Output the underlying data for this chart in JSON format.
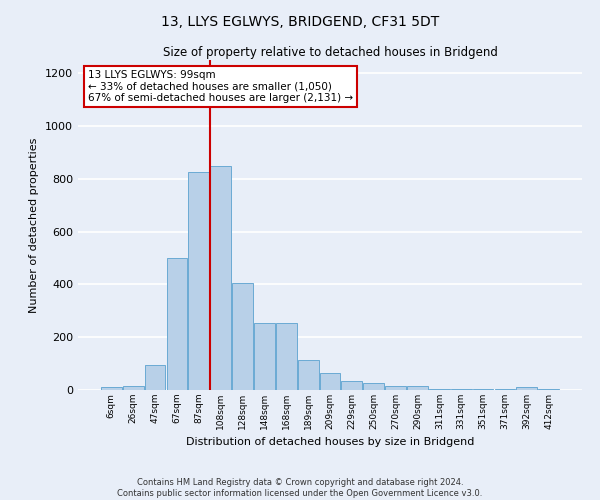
{
  "title": "13, LLYS EGLWYS, BRIDGEND, CF31 5DT",
  "subtitle": "Size of property relative to detached houses in Bridgend",
  "xlabel": "Distribution of detached houses by size in Bridgend",
  "ylabel": "Number of detached properties",
  "bin_labels": [
    "6sqm",
    "26sqm",
    "47sqm",
    "67sqm",
    "87sqm",
    "108sqm",
    "128sqm",
    "148sqm",
    "168sqm",
    "189sqm",
    "209sqm",
    "229sqm",
    "250sqm",
    "270sqm",
    "290sqm",
    "311sqm",
    "331sqm",
    "351sqm",
    "371sqm",
    "392sqm",
    "412sqm"
  ],
  "bar_heights": [
    10,
    15,
    95,
    500,
    825,
    850,
    405,
    255,
    255,
    115,
    65,
    35,
    25,
    15,
    15,
    5,
    5,
    5,
    5,
    10,
    5
  ],
  "bar_color": "#b8d0e8",
  "bar_edge_color": "#6aaad4",
  "vline_x": 4.5,
  "vline_color": "#cc0000",
  "annotation_text": "13 LLYS EGLWYS: 99sqm\n← 33% of detached houses are smaller (1,050)\n67% of semi-detached houses are larger (2,131) →",
  "annotation_box_color": "#ffffff",
  "annotation_box_edge": "#cc0000",
  "footer_line1": "Contains HM Land Registry data © Crown copyright and database right 2024.",
  "footer_line2": "Contains public sector information licensed under the Open Government Licence v3.0.",
  "ylim": [
    0,
    1250
  ],
  "yticks": [
    0,
    200,
    400,
    600,
    800,
    1000,
    1200
  ],
  "bg_color": "#e8eef8",
  "plot_bg_color": "#e8eef8",
  "grid_color": "#ffffff"
}
